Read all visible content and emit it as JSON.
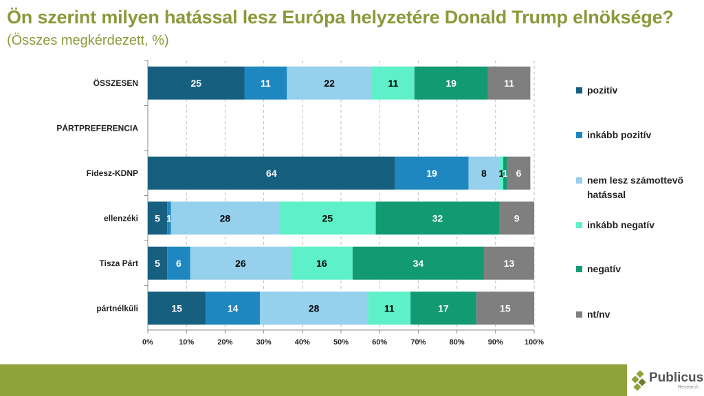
{
  "header": {
    "title": "Ön szerint milyen hatással lesz Európa helyzetére Donald Trump elnöksége?",
    "subtitle": "(Összes megkérdezett, %)"
  },
  "logo": {
    "name": "Publicus",
    "sub": "Research"
  },
  "chart_data": {
    "type": "bar",
    "stacked": true,
    "orientation": "horizontal",
    "title": "Ön szerint milyen hatással lesz Európa helyzetére Donald Trump elnöksége?",
    "categories": [
      "ÖSSZESEN",
      "PÁRTPREFERENCIA",
      "Fidesz-KDNP",
      "ellenzéki",
      "Tisza Párt",
      "pártnélküli"
    ],
    "xlim": [
      0,
      100
    ],
    "xticks": [
      "0%",
      "10%",
      "20%",
      "30%",
      "40%",
      "50%",
      "60%",
      "70%",
      "80%",
      "90%",
      "100%"
    ],
    "legend_position": "right",
    "series": [
      {
        "name": "pozitív",
        "color": "#175f7f",
        "label_color": "#ffffff",
        "values": [
          25,
          null,
          64,
          5,
          5,
          15
        ]
      },
      {
        "name": "inkább pozitív",
        "color": "#1f87c0",
        "label_color": "#ffffff",
        "values": [
          11,
          null,
          19,
          1,
          6,
          14
        ]
      },
      {
        "name": "nem lesz számottevő hatással",
        "color": "#95d0ec",
        "label_color": "#000000",
        "values": [
          22,
          null,
          8,
          28,
          26,
          28
        ]
      },
      {
        "name": "inkább negatív",
        "color": "#5ef0c8",
        "label_color": "#000000",
        "values": [
          11,
          null,
          1,
          25,
          16,
          11
        ]
      },
      {
        "name": "negatív",
        "color": "#129a72",
        "label_color": "#ffffff",
        "values": [
          19,
          null,
          1,
          32,
          34,
          17
        ]
      },
      {
        "name": "nt/nv",
        "color": "#7f7f7f",
        "label_color": "#ffffff",
        "values": [
          11,
          null,
          6,
          9,
          13,
          15
        ]
      }
    ]
  }
}
